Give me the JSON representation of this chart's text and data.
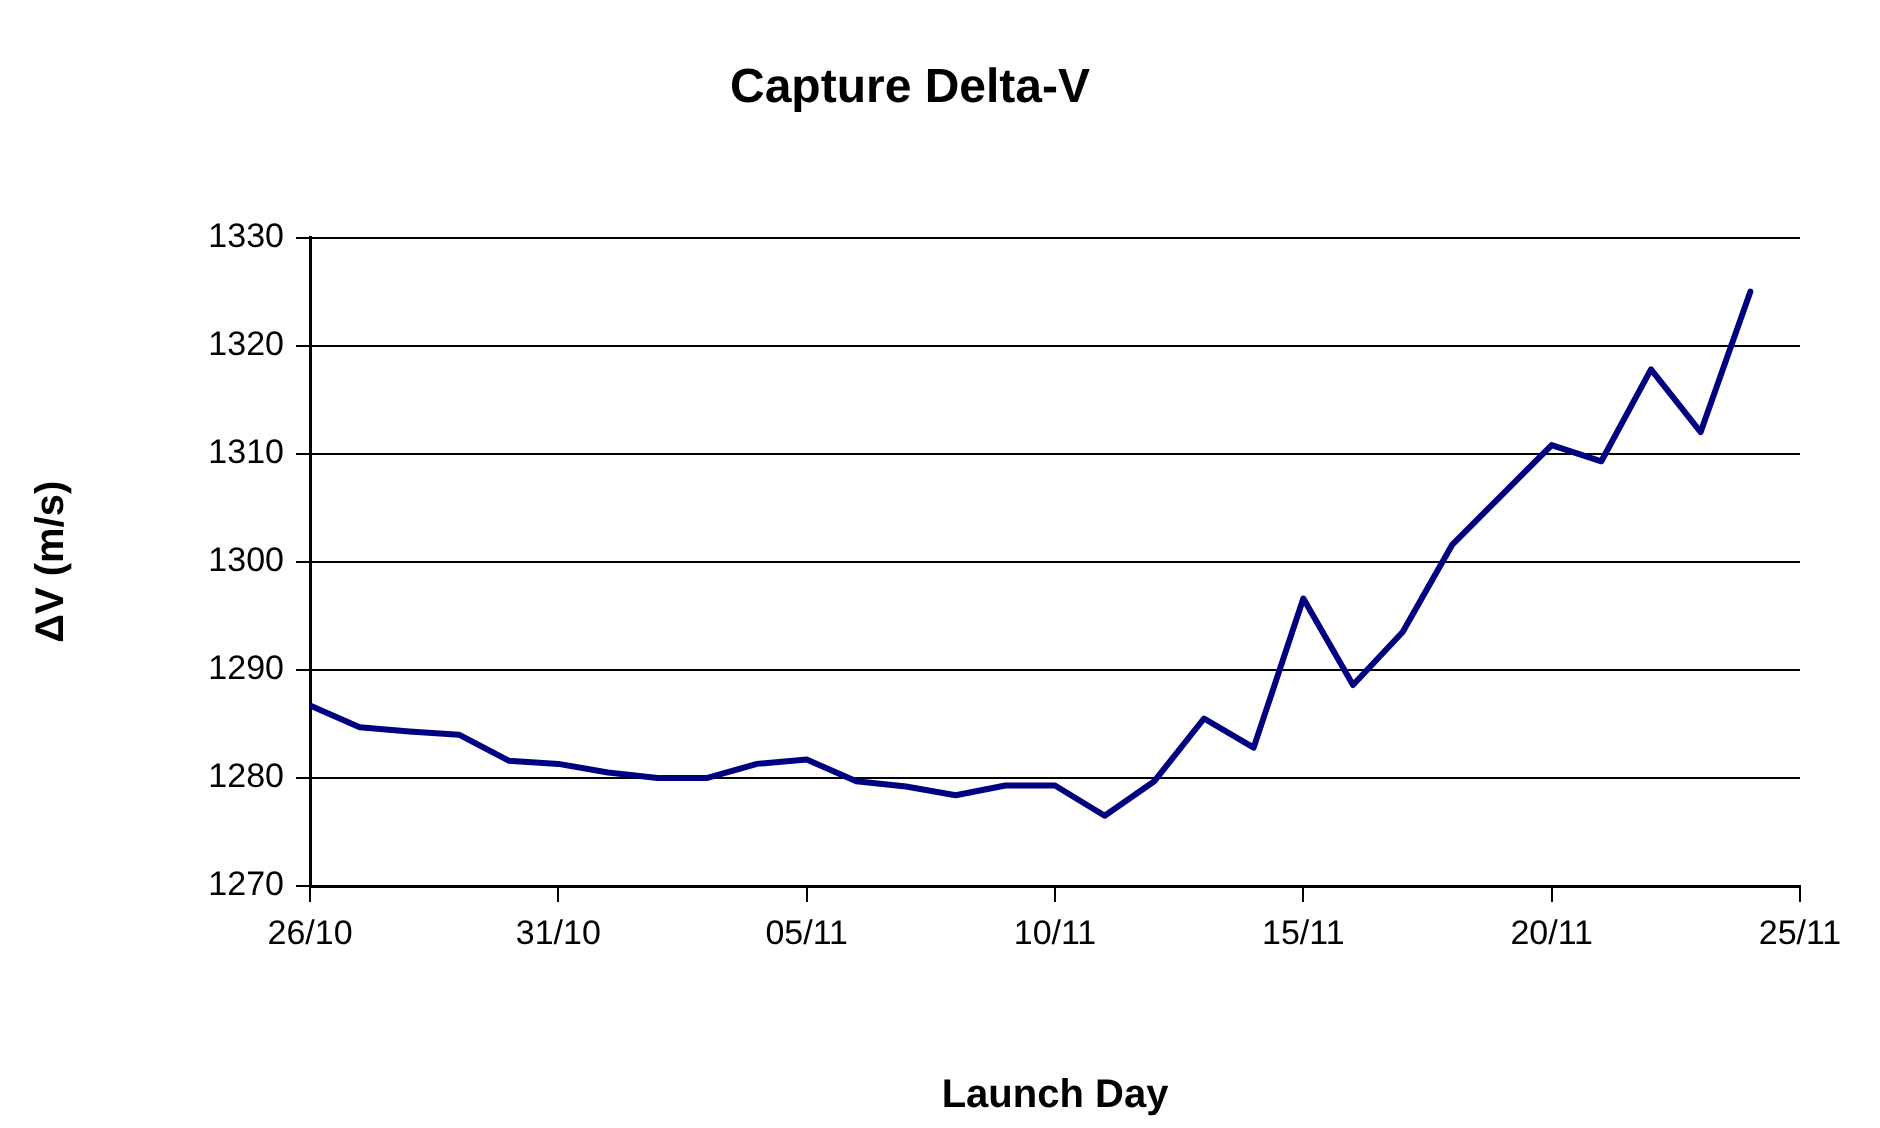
{
  "chart_data": {
    "type": "line",
    "title": "Capture Delta-V",
    "xlabel": "Launch Day",
    "ylabel": "ΔV (m/s)",
    "x": [
      "--10-26",
      "--10-27",
      "--10-28",
      "--10-29",
      "--10-30",
      "--10-31",
      "--11-01",
      "--11-02",
      "--11-03",
      "--11-04",
      "--11-05",
      "--11-06",
      "--11-07",
      "--11-08",
      "--11-09",
      "--11-10",
      "--11-11",
      "--11-12",
      "--11-13",
      "--11-14",
      "--11-15",
      "--11-16",
      "--11-17",
      "--11-18",
      "--11-19",
      "--11-20",
      "--11-21",
      "--11-22",
      "--11-23",
      "--11-24"
    ],
    "series": [
      {
        "color": "#000080",
        "values": [
          1286.7,
          1284.7,
          1284.3,
          1284.0,
          1281.6,
          1281.3,
          1280.5,
          1280.0,
          1280.0,
          1281.3,
          1281.7,
          1279.7,
          1279.2,
          1278.4,
          1279.3,
          1279.3,
          1276.5,
          1279.7,
          1285.5,
          1282.8,
          1296.6,
          1288.6,
          1293.5,
          1301.6,
          1306.2,
          1310.8,
          1309.3,
          1317.8,
          1312.0,
          1325.0
        ]
      }
    ],
    "xlim": [
      "--10-26",
      "--11-25"
    ],
    "xticks": [
      {
        "value": "--10-26",
        "label": "26/10"
      },
      {
        "value": "--10-31",
        "label": "31/10"
      },
      {
        "value": "--11-05",
        "label": "05/11"
      },
      {
        "value": "--11-10",
        "label": "10/11"
      },
      {
        "value": "--11-15",
        "label": "15/11"
      },
      {
        "value": "--11-20",
        "label": "20/11"
      },
      {
        "value": "--11-25",
        "label": "25/11"
      }
    ],
    "ylim": [
      1270,
      1330
    ],
    "yticks": [
      1270,
      1280,
      1290,
      1300,
      1310,
      1320,
      1330
    ],
    "grid": "y",
    "legend": false,
    "marker": "none",
    "line_style": "solid"
  }
}
